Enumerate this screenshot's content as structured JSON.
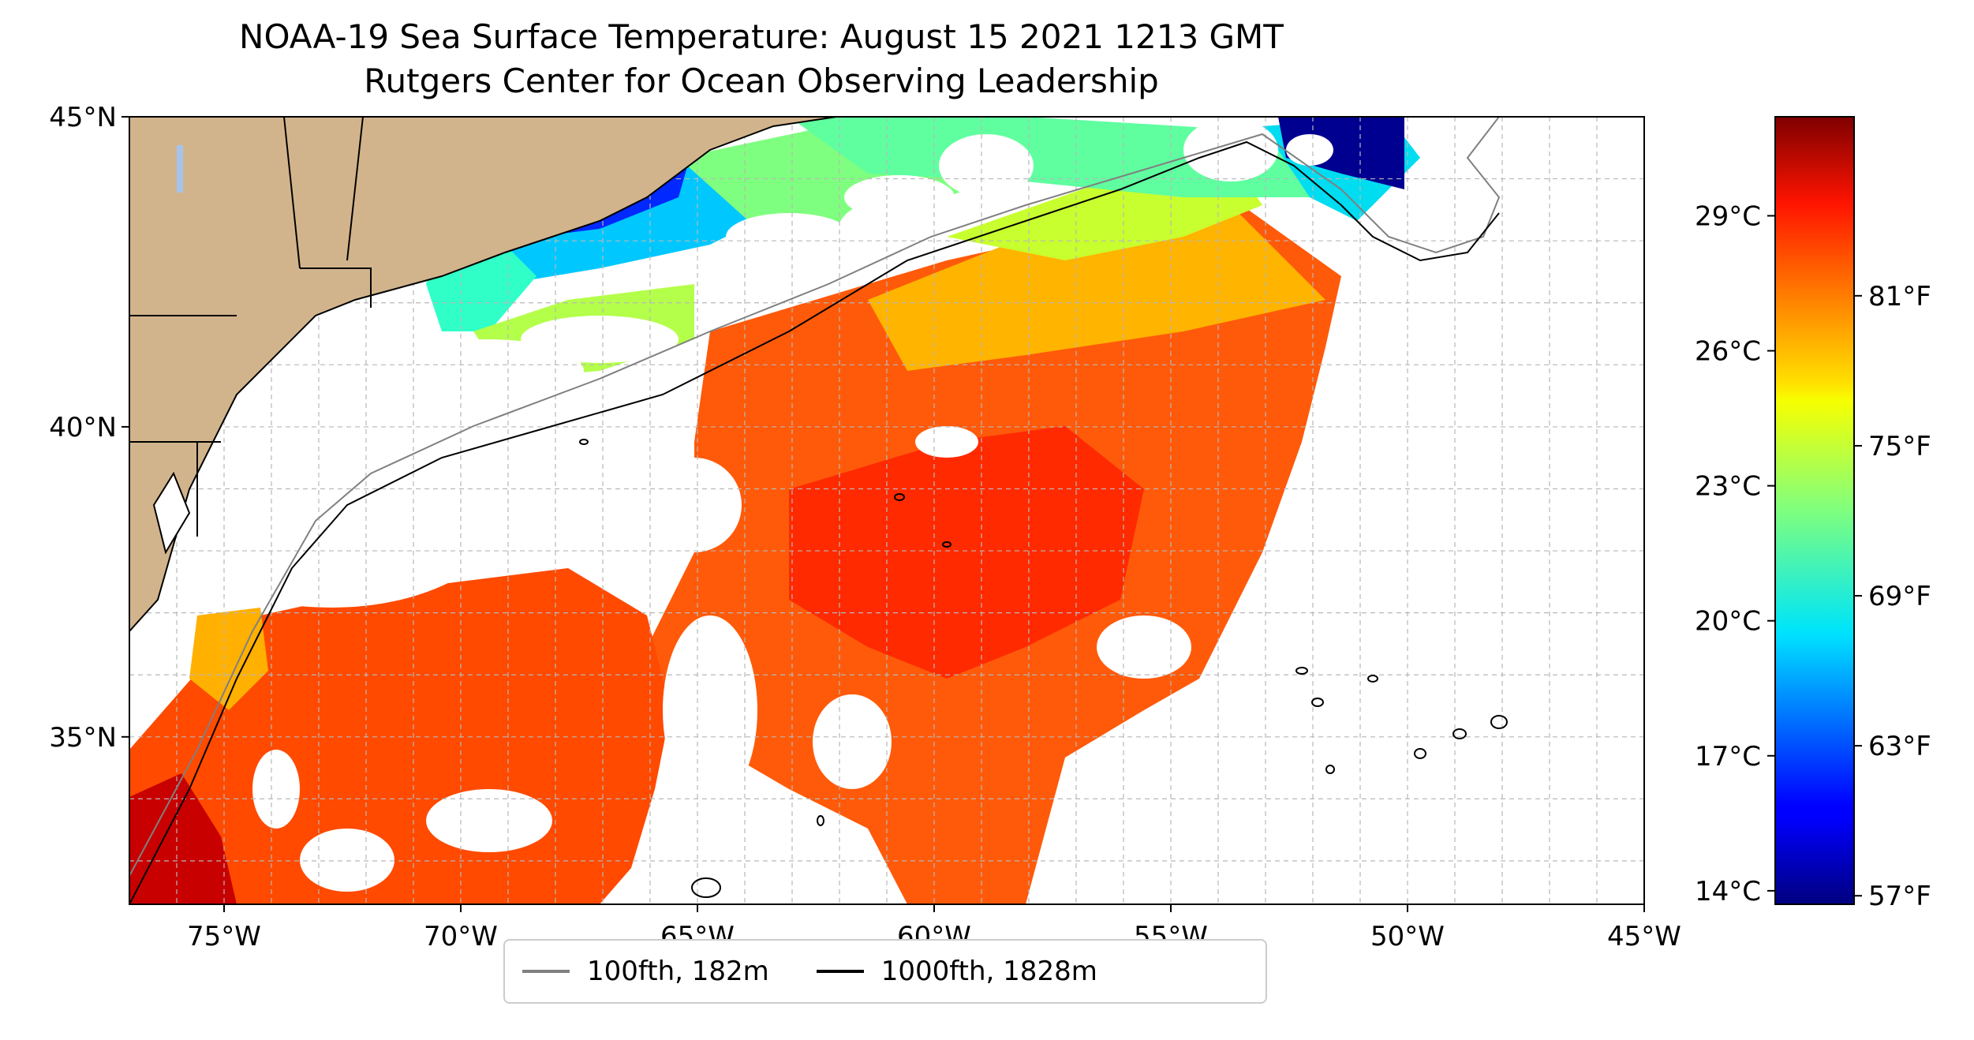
{
  "title": "NOAA-19 Sea Surface Temperature: August 15 2021 1213 GMT",
  "subtitle": "Rutgers Center for Ocean Observing Leadership",
  "map": {
    "lon_range": [
      -77,
      -45
    ],
    "lat_range": [
      32.3,
      45
    ],
    "lon_ticks": [
      {
        "value": -75,
        "label": "75°W"
      },
      {
        "value": -70,
        "label": "70°W"
      },
      {
        "value": -65,
        "label": "65°W"
      },
      {
        "value": -60,
        "label": "60°W"
      },
      {
        "value": -55,
        "label": "55°W"
      },
      {
        "value": -50,
        "label": "50°W"
      },
      {
        "value": -45,
        "label": "45°W"
      }
    ],
    "lat_ticks": [
      {
        "value": 45,
        "label": "45°N"
      },
      {
        "value": 40,
        "label": "40°N"
      },
      {
        "value": 35,
        "label": "35°N"
      }
    ],
    "grid": true,
    "colors": {
      "land": "#d2b48c",
      "lakes": "#a6c3eb",
      "iso100": "#808080",
      "iso1000": "#000000"
    }
  },
  "colorbar": {
    "colormap": "jet",
    "celsius_range": [
      13.7,
      31.2
    ],
    "celsius_ticks": [
      {
        "value": 29,
        "label": "29°C"
      },
      {
        "value": 26,
        "label": "26°C"
      },
      {
        "value": 23,
        "label": "23°C"
      },
      {
        "value": 20,
        "label": "20°C"
      },
      {
        "value": 17,
        "label": "17°C"
      },
      {
        "value": 14,
        "label": "14°C"
      }
    ],
    "fahrenheit_ticks": [
      {
        "value": 81,
        "label": "81°F"
      },
      {
        "value": 75,
        "label": "75°F"
      },
      {
        "value": 69,
        "label": "69°F"
      },
      {
        "value": 63,
        "label": "63°F"
      },
      {
        "value": 57,
        "label": "57°F"
      }
    ]
  },
  "legend": {
    "items": [
      {
        "label": "100fth, 182m",
        "color": "#808080"
      },
      {
        "label": "1000fth, 1828m",
        "color": "#000000"
      }
    ]
  }
}
